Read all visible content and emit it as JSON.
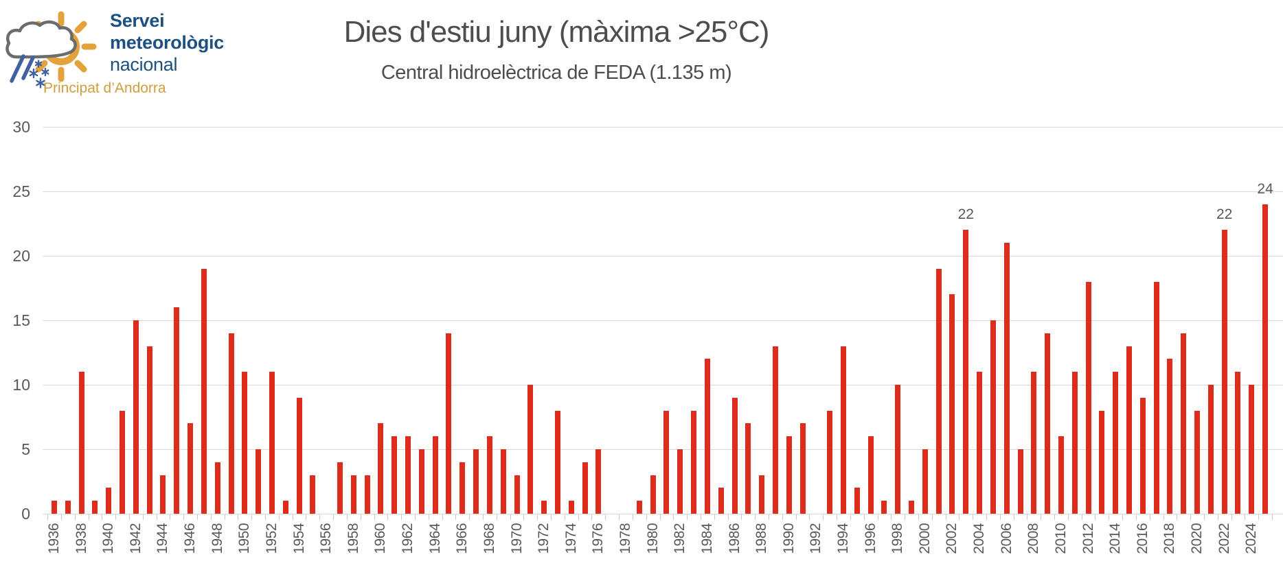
{
  "header": {
    "logo": {
      "line1": "Servei",
      "line2": "meteorològic",
      "line3": "nacional",
      "subtitle": "Principat d’Andorra"
    }
  },
  "chart_data": {
    "type": "bar",
    "title": "Dies d'estiu juny (màxima >25°C)",
    "subtitle": "Central hidroelèctrica de FEDA (1.135 m)",
    "x": [
      1936,
      1937,
      1938,
      1939,
      1940,
      1941,
      1942,
      1943,
      1944,
      1945,
      1946,
      1947,
      1948,
      1949,
      1950,
      1951,
      1952,
      1953,
      1954,
      1955,
      1956,
      1957,
      1958,
      1959,
      1960,
      1961,
      1962,
      1963,
      1964,
      1965,
      1966,
      1967,
      1968,
      1969,
      1970,
      1971,
      1972,
      1973,
      1974,
      1975,
      1976,
      1977,
      1978,
      1979,
      1980,
      1981,
      1982,
      1983,
      1984,
      1985,
      1986,
      1987,
      1988,
      1989,
      1990,
      1991,
      1992,
      1993,
      1994,
      1995,
      1996,
      1997,
      1998,
      1999,
      2000,
      2001,
      2002,
      2003,
      2004,
      2005,
      2006,
      2007,
      2008,
      2009,
      2010,
      2011,
      2012,
      2013,
      2014,
      2015,
      2016,
      2017,
      2018,
      2019,
      2020,
      2021,
      2022,
      2023,
      2024,
      2025
    ],
    "values": [
      1,
      1,
      11,
      1,
      2,
      8,
      15,
      13,
      3,
      16,
      7,
      19,
      4,
      14,
      11,
      5,
      11,
      1,
      9,
      3,
      0,
      4,
      3,
      3,
      7,
      6,
      6,
      5,
      6,
      14,
      4,
      5,
      6,
      5,
      3,
      10,
      1,
      8,
      1,
      4,
      5,
      0,
      0,
      1,
      3,
      8,
      5,
      8,
      12,
      2,
      9,
      7,
      3,
      13,
      6,
      7,
      0,
      8,
      13,
      2,
      6,
      1,
      10,
      1,
      5,
      19,
      17,
      22,
      11,
      15,
      21,
      5,
      11,
      14,
      6,
      11,
      18,
      8,
      11,
      13,
      9,
      18,
      12,
      14,
      8,
      10,
      22,
      11,
      10,
      24
    ],
    "bar_labels": [
      {
        "year": 2003,
        "label": "22"
      },
      {
        "year": 2022,
        "label": "22"
      },
      {
        "year": 2025,
        "label": "24"
      }
    ],
    "ylim": [
      0,
      30
    ],
    "yticks": [
      0,
      5,
      10,
      15,
      20,
      25,
      30
    ],
    "xtick_years": [
      1936,
      1938,
      1940,
      1942,
      1944,
      1946,
      1948,
      1950,
      1952,
      1954,
      1956,
      1958,
      1960,
      1962,
      1964,
      1966,
      1968,
      1970,
      1972,
      1974,
      1976,
      1978,
      1980,
      1982,
      1984,
      1986,
      1988,
      1990,
      1992,
      1994,
      1996,
      1998,
      2000,
      2002,
      2004,
      2006,
      2008,
      2010,
      2012,
      2014,
      2016,
      2018,
      2020,
      2022,
      2024
    ],
    "grid": true,
    "legend": "none",
    "colors": {
      "bar": "#dd2b1c",
      "gridline": "#d9d9d9",
      "axis_text": "#595959",
      "title_text": "#4d4d4d",
      "tick": "#b8cce4",
      "logo_blue": "#1c5080",
      "logo_gold": "#cf9f3e",
      "sun_orange": "#e3a23b",
      "cloud_gray": "#6a6c6e",
      "rain_blue": "#41609f"
    }
  }
}
